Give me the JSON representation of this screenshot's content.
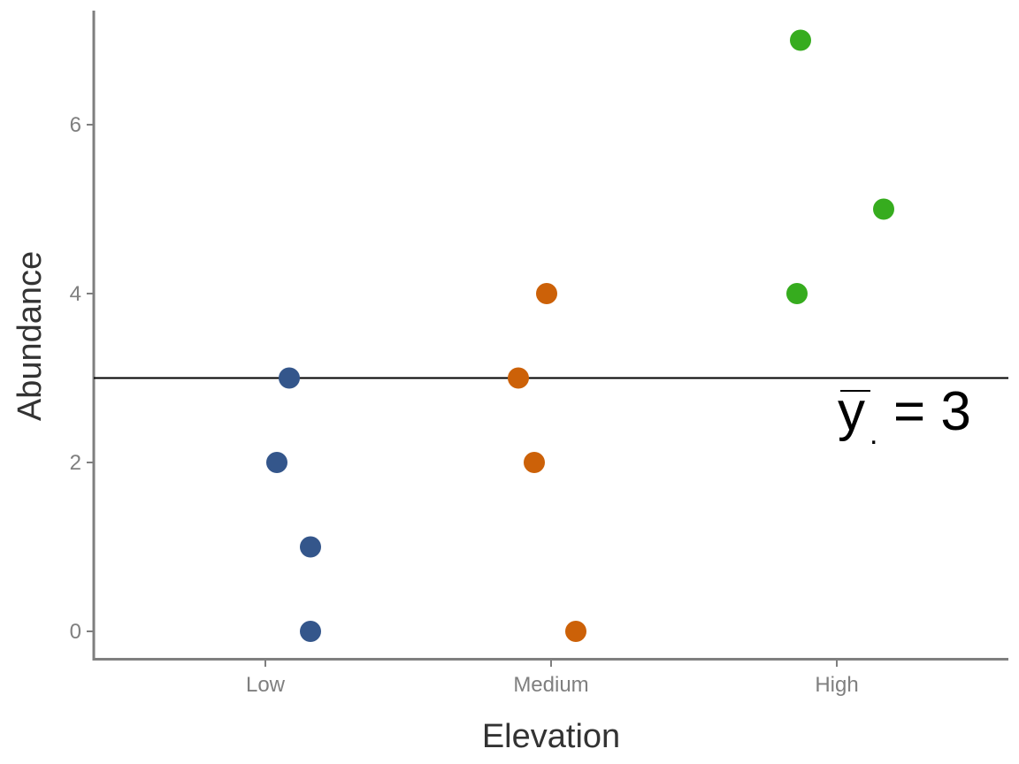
{
  "chart_data": {
    "type": "scatter",
    "xlabel": "Elevation",
    "ylabel": "Abundance",
    "categories": [
      "Low",
      "Medium",
      "High"
    ],
    "y_ticks": [
      "0",
      "2",
      "4",
      "6"
    ],
    "ylim": [
      -0.33,
      7.33
    ],
    "grid": false,
    "legend": "none",
    "series": [
      {
        "category": "Low",
        "color": "#34568b",
        "points": [
          {
            "x": "Low",
            "y": 3
          },
          {
            "x": "Low",
            "y": 2
          },
          {
            "x": "Low",
            "y": 1
          },
          {
            "x": "Low",
            "y": 0
          }
        ]
      },
      {
        "category": "Medium",
        "color": "#cc6108",
        "points": [
          {
            "x": "Medium",
            "y": 4
          },
          {
            "x": "Medium",
            "y": 3
          },
          {
            "x": "Medium",
            "y": 2
          },
          {
            "x": "Medium",
            "y": 0
          }
        ]
      },
      {
        "category": "High",
        "color": "#36ac1e",
        "points": [
          {
            "x": "High",
            "y": 7
          },
          {
            "x": "High",
            "y": 5
          },
          {
            "x": "High",
            "y": 4
          }
        ]
      }
    ],
    "reference_line": {
      "y": 3,
      "color": "#000000",
      "label_symbol": "y",
      "label_subscript": ".",
      "label_text": "= 3"
    }
  }
}
